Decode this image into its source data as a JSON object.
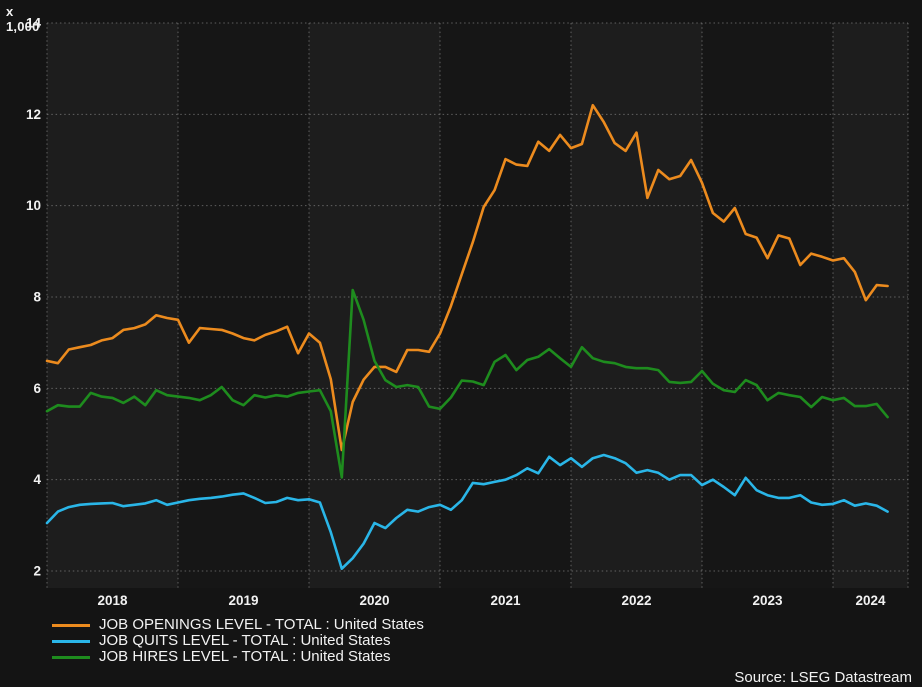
{
  "chart": {
    "unit_label": "x 1,000",
    "source_label": "Source: LSEG Datastream",
    "colors": {
      "background": "#141414",
      "plot_band_odd_year": "#161616",
      "plot_band_even_year": "#1d1d1d",
      "gridline": "#9a9a9a",
      "text": "#f2f2f2"
    }
  },
  "chart_data": {
    "type": "line",
    "title": "",
    "xlabel": "",
    "ylabel": "x 1,000",
    "x_unit": "month",
    "x_start": "2018-01",
    "x_end": "2024-06",
    "ylim": [
      2,
      14
    ],
    "y_ticks": [
      2,
      4,
      6,
      8,
      10,
      12,
      14
    ],
    "x_tick_labels": [
      "2018",
      "2019",
      "2020",
      "2021",
      "2022",
      "2023",
      "2024"
    ],
    "grid": "dotted",
    "legend_position": "bottom-left",
    "series": [
      {
        "name": "JOB OPENINGS LEVEL - TOTAL : United States",
        "color": "#ec8b1e",
        "values": [
          6.6,
          6.55,
          6.85,
          6.9,
          6.95,
          7.05,
          7.1,
          7.28,
          7.32,
          7.4,
          7.6,
          7.54,
          7.5,
          7.0,
          7.32,
          7.3,
          7.28,
          7.2,
          7.1,
          7.05,
          7.17,
          7.25,
          7.35,
          6.77,
          7.2,
          7.0,
          6.2,
          4.65,
          5.7,
          6.19,
          6.47,
          6.47,
          6.36,
          6.84,
          6.84,
          6.8,
          7.2,
          7.8,
          8.5,
          9.2,
          9.97,
          10.34,
          11.02,
          10.9,
          10.87,
          11.4,
          11.2,
          11.55,
          11.26,
          11.35,
          12.2,
          11.83,
          11.37,
          11.2,
          11.6,
          10.17,
          10.78,
          10.58,
          10.65,
          11.0,
          10.5,
          9.84,
          9.65,
          9.95,
          9.38,
          9.3,
          8.85,
          9.35,
          9.28,
          8.7,
          8.95,
          8.88,
          8.8,
          8.85,
          8.55,
          7.93,
          8.26,
          8.24
        ]
      },
      {
        "name": "JOB QUITS LEVEL - TOTAL : United States",
        "color": "#2ab6e8",
        "values": [
          3.05,
          3.3,
          3.4,
          3.45,
          3.47,
          3.48,
          3.49,
          3.42,
          3.45,
          3.48,
          3.55,
          3.45,
          3.5,
          3.55,
          3.58,
          3.6,
          3.63,
          3.67,
          3.7,
          3.6,
          3.49,
          3.51,
          3.6,
          3.55,
          3.57,
          3.5,
          2.85,
          2.05,
          2.28,
          2.6,
          3.05,
          2.94,
          3.16,
          3.34,
          3.3,
          3.4,
          3.45,
          3.34,
          3.55,
          3.93,
          3.9,
          3.95,
          4.0,
          4.1,
          4.25,
          4.14,
          4.5,
          4.32,
          4.47,
          4.28,
          4.47,
          4.54,
          4.47,
          4.36,
          4.15,
          4.21,
          4.15,
          4.0,
          4.1,
          4.1,
          3.88,
          4.0,
          3.84,
          3.66,
          4.04,
          3.77,
          3.66,
          3.6,
          3.6,
          3.66,
          3.5,
          3.45,
          3.47,
          3.55,
          3.43,
          3.48,
          3.43,
          3.3
        ]
      },
      {
        "name": "JOB HIRES LEVEL - TOTAL : United States",
        "color": "#1e8c1e",
        "values": [
          5.5,
          5.63,
          5.6,
          5.6,
          5.9,
          5.82,
          5.79,
          5.68,
          5.82,
          5.63,
          5.96,
          5.85,
          5.82,
          5.79,
          5.74,
          5.85,
          6.03,
          5.74,
          5.63,
          5.85,
          5.8,
          5.85,
          5.82,
          5.9,
          5.93,
          5.96,
          5.5,
          4.05,
          8.15,
          7.5,
          6.6,
          6.18,
          6.03,
          6.07,
          6.03,
          5.6,
          5.55,
          5.8,
          6.17,
          6.15,
          6.07,
          6.58,
          6.73,
          6.4,
          6.62,
          6.69,
          6.86,
          6.66,
          6.47,
          6.9,
          6.66,
          6.58,
          6.55,
          6.47,
          6.44,
          6.44,
          6.4,
          6.14,
          6.12,
          6.14,
          6.38,
          6.1,
          5.96,
          5.92,
          6.18,
          6.07,
          5.74,
          5.9,
          5.85,
          5.81,
          5.59,
          5.81,
          5.74,
          5.79,
          5.61,
          5.61,
          5.66,
          5.37
        ]
      }
    ]
  }
}
